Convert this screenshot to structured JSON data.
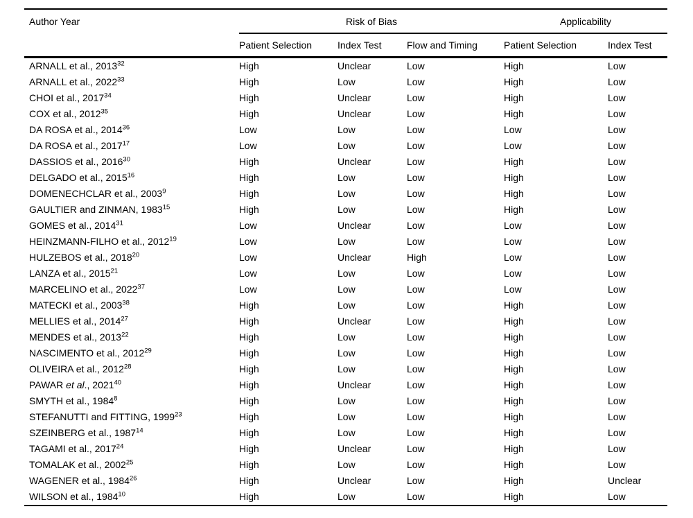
{
  "colors": {
    "text": "#000000",
    "background": "#ffffff",
    "rule": "#000000"
  },
  "table": {
    "columns": {
      "author": "Author Year",
      "groups": [
        {
          "label": "Risk of Bias",
          "span": 3
        },
        {
          "label": "Applicability",
          "span": 2
        }
      ],
      "subheaders": [
        "Patient Selection",
        "Index Test",
        "Flow and Timing",
        "Patient Selection",
        "Index Test"
      ]
    },
    "rows": [
      {
        "author": "ARNALL et al., 2013",
        "ref": "32",
        "values": [
          "High",
          "Unclear",
          "Low",
          "High",
          "Low"
        ]
      },
      {
        "author": "ARNALL et al., 2022",
        "ref": "33",
        "values": [
          "High",
          "Low",
          "Low",
          "High",
          "Low"
        ]
      },
      {
        "author": "CHOI et al., 2017",
        "ref": "34",
        "values": [
          "High",
          "Unclear",
          "Low",
          "High",
          "Low"
        ]
      },
      {
        "author": "COX et al., 2012",
        "ref": "35",
        "values": [
          "High",
          "Unclear",
          "Low",
          "High",
          "Low"
        ]
      },
      {
        "author": "DA ROSA et al., 2014",
        "ref": "36",
        "values": [
          "Low",
          "Low",
          "Low",
          "Low",
          "Low"
        ]
      },
      {
        "author": "DA ROSA et al., 2017",
        "ref": "17",
        "values": [
          "Low",
          "Low",
          "Low",
          "Low",
          "Low"
        ]
      },
      {
        "author": "DASSIOS et al., 2016",
        "ref": "30",
        "values": [
          "High",
          "Unclear",
          "Low",
          "High",
          "Low"
        ]
      },
      {
        "author": "DELGADO et al., 2015",
        "ref": "16",
        "values": [
          "High",
          "Low",
          "Low",
          "High",
          "Low"
        ]
      },
      {
        "author": "DOMENECHCLAR et al., 2003",
        "ref": "9",
        "values": [
          "High",
          "Low",
          "Low",
          "High",
          "Low"
        ]
      },
      {
        "author": "GAULTIER and ZINMAN, 1983",
        "ref": "15",
        "values": [
          "High",
          "Low",
          "Low",
          "High",
          "Low"
        ]
      },
      {
        "author": "GOMES et al., 2014",
        "ref": "31",
        "values": [
          "Low",
          "Unclear",
          "Low",
          "Low",
          "Low"
        ]
      },
      {
        "author": "HEINZMANN-FILHO et al., 2012",
        "ref": "19",
        "values": [
          "Low",
          "Low",
          "Low",
          "Low",
          "Low"
        ]
      },
      {
        "author": "HULZEBOS et al., 2018",
        "ref": "20",
        "values": [
          "Low",
          "Unclear",
          "High",
          "Low",
          "Low"
        ]
      },
      {
        "author": "LANZA et al., 2015",
        "ref": "21",
        "values": [
          "Low",
          "Low",
          "Low",
          "Low",
          "Low"
        ]
      },
      {
        "author": "MARCELINO et al., 2022",
        "ref": "37",
        "values": [
          "Low",
          "Low",
          "Low",
          "Low",
          "Low"
        ]
      },
      {
        "author": "MATECKI et al., 2003",
        "ref": "38",
        "values": [
          "High",
          "Low",
          "Low",
          "High",
          "Low"
        ]
      },
      {
        "author": "MELLIES et al., 2014",
        "ref": "27",
        "values": [
          "High",
          "Unclear",
          "Low",
          "High",
          "Low"
        ]
      },
      {
        "author": "MENDES et al., 2013",
        "ref": "22",
        "values": [
          "High",
          "Low",
          "Low",
          "High",
          "Low"
        ]
      },
      {
        "author": "NASCIMENTO et al., 2012",
        "ref": "29",
        "values": [
          "High",
          "Low",
          "Low",
          "High",
          "Low"
        ]
      },
      {
        "author": "OLIVEIRA et al., 2012",
        "ref": "28",
        "values": [
          "High",
          "Low",
          "Low",
          "High",
          "Low"
        ]
      },
      {
        "author": "PAWAR et al., 2021",
        "ref": "40",
        "italic_et_al": true,
        "values": [
          "High",
          "Unclear",
          "Low",
          "High",
          "Low"
        ]
      },
      {
        "author": "SMYTH et al., 1984",
        "ref": "8",
        "values": [
          "High",
          "Low",
          "Low",
          "High",
          "Low"
        ]
      },
      {
        "author": "STEFANUTTI and FITTING, 1999",
        "ref": "23",
        "values": [
          "High",
          "Low",
          "Low",
          "High",
          "Low"
        ]
      },
      {
        "author": "SZEINBERG et al., 1987",
        "ref": "14",
        "values": [
          "High",
          "Low",
          "Low",
          "High",
          "Low"
        ]
      },
      {
        "author": "TAGAMI et al., 2017",
        "ref": "24",
        "values": [
          "High",
          "Unclear",
          "Low",
          "High",
          "Low"
        ]
      },
      {
        "author": "TOMALAK et al., 2002",
        "ref": "25",
        "values": [
          "High",
          "Low",
          "Low",
          "High",
          "Low"
        ]
      },
      {
        "author": "WAGENER et al., 1984",
        "ref": "26",
        "values": [
          "High",
          "Unclear",
          "Low",
          "High",
          "Unclear"
        ]
      },
      {
        "author": "WILSON et al., 1984",
        "ref": "10",
        "values": [
          "High",
          "Low",
          "Low",
          "High",
          "Low"
        ]
      }
    ]
  }
}
